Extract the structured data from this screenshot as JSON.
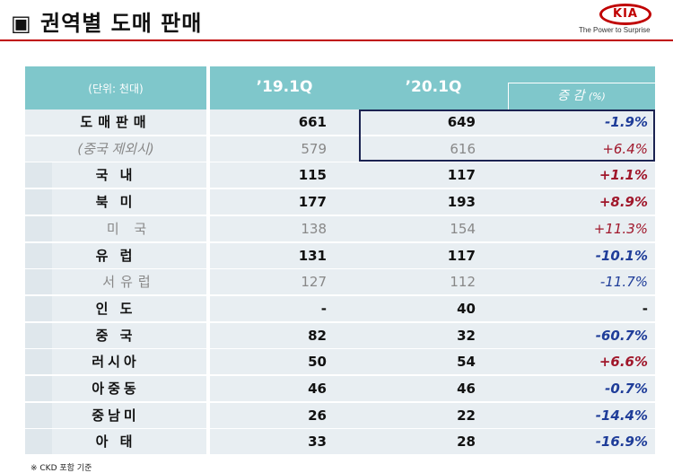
{
  "title": "▣ 권역별 도매 판매",
  "logo": {
    "text": "KIA",
    "tagline": "The Power to Surprise"
  },
  "table": {
    "headers": {
      "unit": "(단위: 천대)",
      "col1": "’19.1Q",
      "col2": "’20.1Q",
      "change_label": "증 감",
      "change_unit": "(%)"
    },
    "rows": [
      {
        "name": "도매판매",
        "v1": "661",
        "v2": "649",
        "chg": "-1.9%"
      },
      {
        "name": "(중국 제외시)",
        "v1": "579",
        "v2": "616",
        "chg": "+6.4%"
      },
      {
        "name": "국 내",
        "v1": "115",
        "v2": "117",
        "chg": "+1.1%"
      },
      {
        "name": "북 미",
        "v1": "177",
        "v2": "193",
        "chg": "+8.9%"
      },
      {
        "name": "미 국",
        "v1": "138",
        "v2": "154",
        "chg": "+11.3%"
      },
      {
        "name": "유 럽",
        "v1": "131",
        "v2": "117",
        "chg": "-10.1%"
      },
      {
        "name": "서유럽",
        "v1": "127",
        "v2": "112",
        "chg": "-11.7%"
      },
      {
        "name": "인 도",
        "v1": "-",
        "v2": "40",
        "chg": "-"
      },
      {
        "name": "중 국",
        "v1": "82",
        "v2": "32",
        "chg": "-60.7%"
      },
      {
        "name": "러시아",
        "v1": "50",
        "v2": "54",
        "chg": "+6.6%"
      },
      {
        "name": "아중동",
        "v1": "46",
        "v2": "46",
        "chg": "-0.7%"
      },
      {
        "name": "중남미",
        "v1": "26",
        "v2": "22",
        "chg": "-14.4%"
      },
      {
        "name": "아 태",
        "v1": "33",
        "v2": "28",
        "chg": "-16.9%"
      }
    ]
  },
  "footnote": "※ CKD 포함 기준",
  "colors": {
    "header": "#7fc7cb",
    "accent_red": "#c00000",
    "negative": "#1f3d99",
    "positive": "#a0172b",
    "highlight_border": "#1b2352"
  }
}
